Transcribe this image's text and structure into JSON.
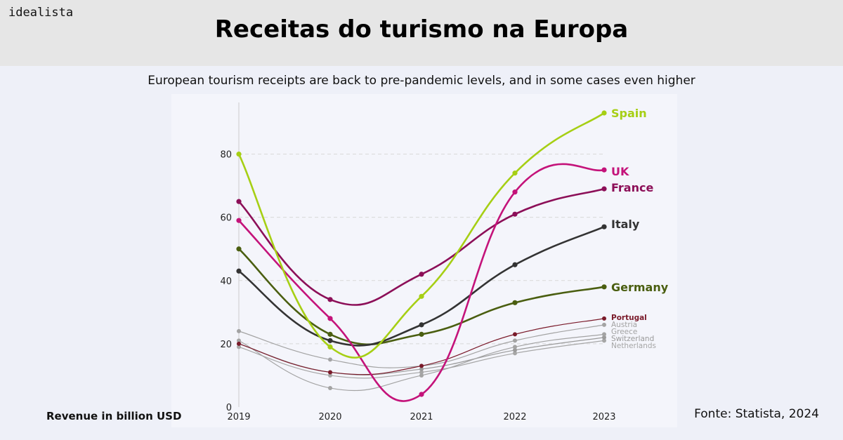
{
  "brand": "idealista",
  "title": "Receitas do turismo na Europa",
  "subtitle": "European tourism receipts are back to pre-pandemic levels, and in some cases even higher",
  "source": "Fonte: Statista, 2024",
  "chart_data": {
    "type": "line",
    "x": [
      "2019",
      "2020",
      "2021",
      "2022",
      "2023"
    ],
    "ylabel": "Revenue in billion USD",
    "ylim": [
      0,
      95
    ],
    "yticks": [
      0,
      20,
      40,
      60,
      80
    ],
    "grid": true,
    "legend": "right end labels",
    "series": [
      {
        "name": "Netherlands",
        "values": [
          19,
          10,
          11,
          17,
          21
        ],
        "color": "#a6a6a6",
        "major": false
      },
      {
        "name": "Switzerland",
        "values": [
          20,
          11,
          12,
          18,
          22
        ],
        "color": "#9a9a9a",
        "major": false
      },
      {
        "name": "Greece",
        "values": [
          21,
          6,
          10,
          19,
          23
        ],
        "color": "#a3a3a3",
        "major": false
      },
      {
        "name": "Austria",
        "values": [
          24,
          15,
          13,
          21,
          26
        ],
        "color": "#a3a3a3",
        "major": false
      },
      {
        "name": "Portugal",
        "values": [
          20,
          11,
          13,
          23,
          28
        ],
        "color": "#7a1a2a",
        "major": false
      },
      {
        "name": "Germany",
        "values": [
          50,
          23,
          23,
          33,
          38
        ],
        "color": "#4a5e10",
        "major": true
      },
      {
        "name": "Italy",
        "values": [
          43,
          21,
          26,
          45,
          57
        ],
        "color": "#333333",
        "major": true
      },
      {
        "name": "France",
        "values": [
          65,
          34,
          42,
          61,
          69
        ],
        "color": "#8c0f58",
        "major": true
      },
      {
        "name": "UK",
        "values": [
          59,
          28,
          4,
          68,
          75
        ],
        "color": "#c4137a",
        "major": true
      },
      {
        "name": "Spain",
        "values": [
          80,
          19,
          35,
          74,
          93
        ],
        "color": "#a6cf14",
        "major": true
      }
    ]
  }
}
